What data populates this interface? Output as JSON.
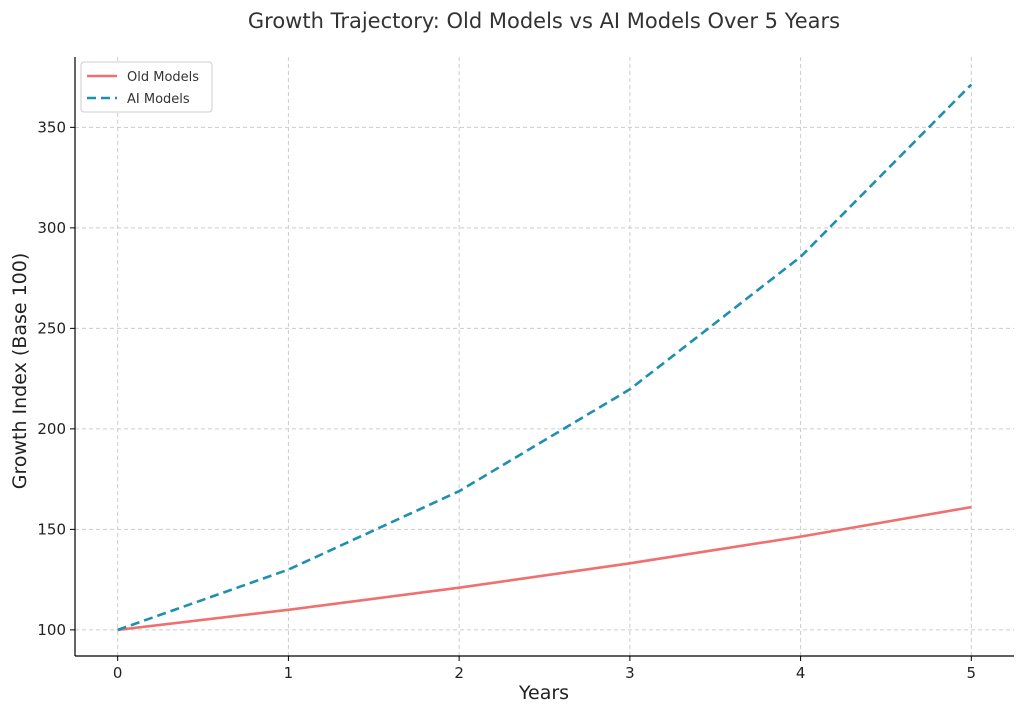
{
  "chart_data": {
    "type": "line",
    "title": "Growth Trajectory: Old Models vs AI Models Over 5 Years",
    "xlabel": "Years",
    "ylabel": "Growth Index (Base 100)",
    "x": [
      0,
      1,
      2,
      3,
      4,
      5
    ],
    "xlim": [
      -0.25,
      5.25
    ],
    "ylim": [
      87,
      385
    ],
    "xticks": [
      0,
      1,
      2,
      3,
      4,
      5
    ],
    "yticks": [
      100,
      150,
      200,
      250,
      300,
      350
    ],
    "grid": true,
    "legend_position": "top-left",
    "series": [
      {
        "name": "Old Models",
        "values": [
          100,
          110,
          121,
          133.1,
          146.4,
          161.1
        ],
        "color": "#f07070",
        "style": "solid"
      },
      {
        "name": "AI Models",
        "values": [
          100,
          130,
          169,
          219.7,
          285.6,
          371.3
        ],
        "color": "#1f8fb0",
        "style": "dashed"
      }
    ]
  }
}
